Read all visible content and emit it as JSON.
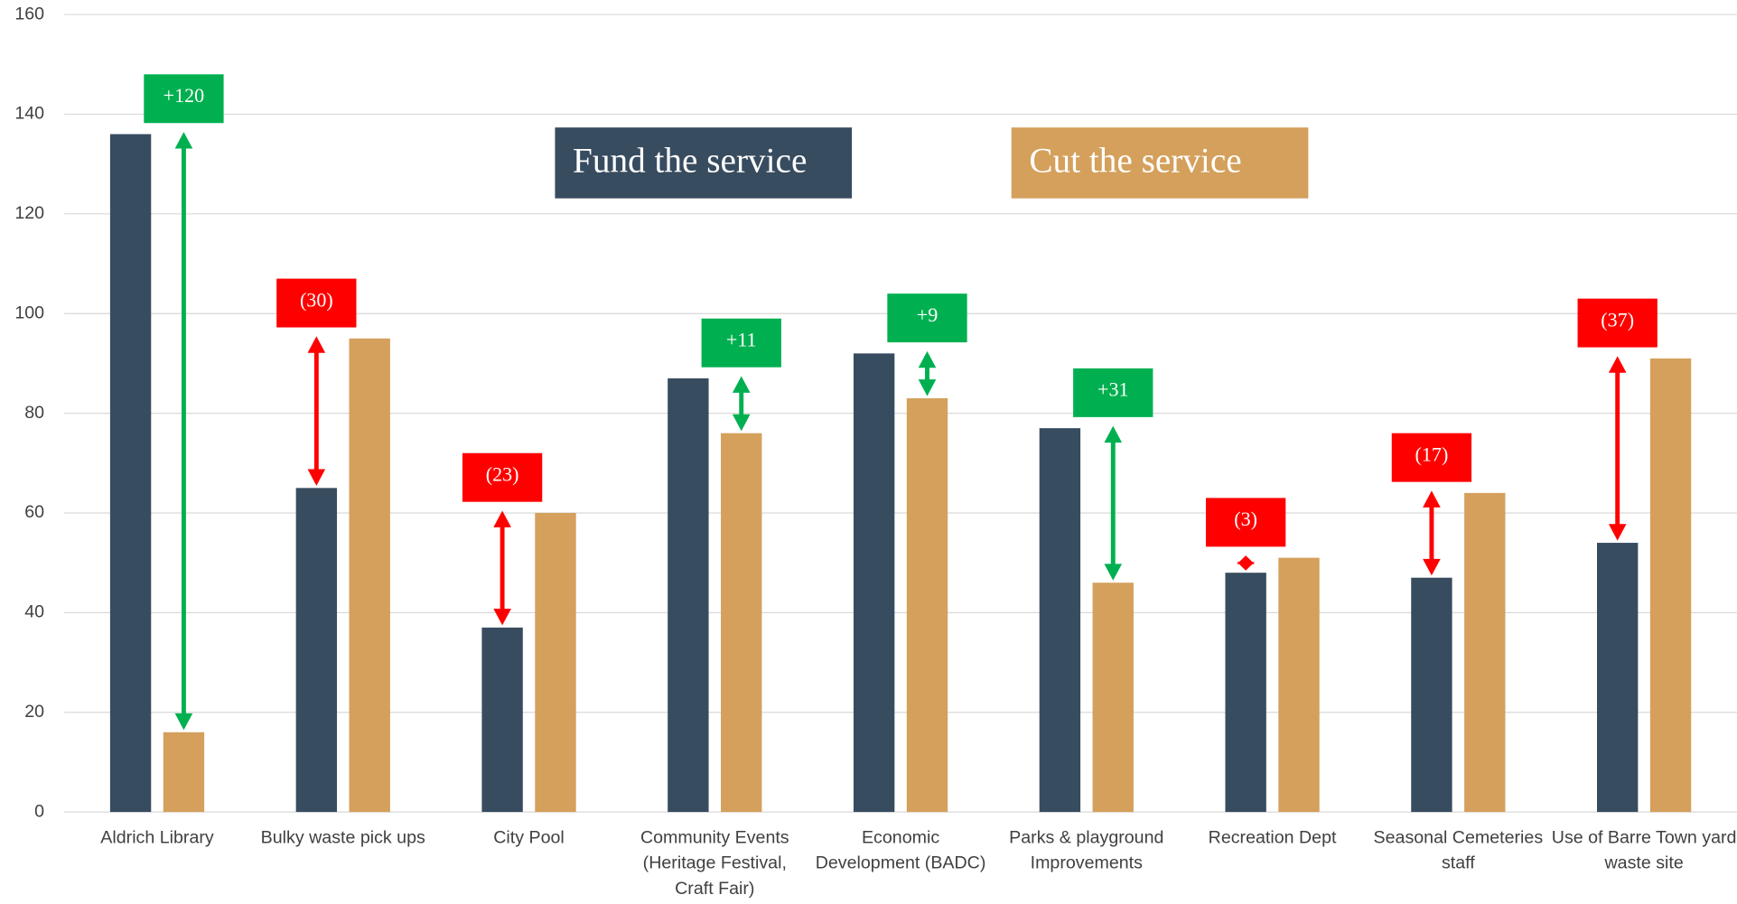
{
  "chart_data": {
    "type": "bar",
    "categories": [
      "Aldrich Library",
      "Bulky waste pick ups",
      "City Pool",
      "Community Events (Heritage Festival, Craft Fair)",
      "Economic Development (BADC)",
      "Parks & playground Improvements",
      "Recreation Dept",
      "Seasonal Cemeteries staff",
      "Use of Barre Town yard waste site"
    ],
    "series": [
      {
        "name": "Fund the service",
        "color": "#384c60",
        "values": [
          136,
          65,
          37,
          87,
          92,
          77,
          48,
          47,
          54
        ]
      },
      {
        "name": "Cut the service",
        "color": "#d4a05c",
        "values": [
          16,
          95,
          60,
          76,
          83,
          46,
          51,
          64,
          91
        ]
      }
    ],
    "differences": {
      "values": [
        120,
        -30,
        -23,
        11,
        9,
        31,
        -3,
        -17,
        -37
      ],
      "value_labels": [
        "+120",
        "(30)",
        "(23)",
        "+11",
        "+9",
        "+31",
        "(3)",
        "(17)",
        "(37)"
      ],
      "positive_color": "#00b050",
      "negative_color": "#ff0000"
    },
    "ylim": [
      0,
      160
    ],
    "yticks": [
      0,
      20,
      40,
      60,
      80,
      100,
      120,
      140,
      160
    ],
    "grid": true
  }
}
